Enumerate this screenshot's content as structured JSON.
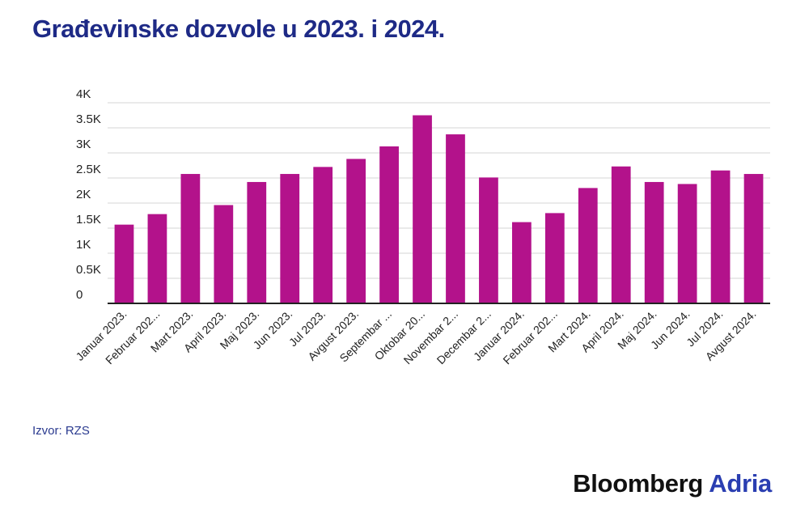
{
  "header": {
    "title": "Građevinske dozvole u 2023. i 2024."
  },
  "footer": {
    "source": "Izvor: RZS",
    "brand_main": "Bloomberg",
    "brand_accent": "Adria"
  },
  "colors": {
    "bar": "#b3128b",
    "title": "#1e2a86",
    "grid": "#d6d6d6",
    "axis": "#222222"
  },
  "chart_data": {
    "type": "bar",
    "title": "Građevinske dozvole u 2023. i 2024.",
    "xlabel": "",
    "ylabel": "",
    "ylim": [
      0,
      4000
    ],
    "yticks": [
      {
        "value": 0,
        "label": "0"
      },
      {
        "value": 500,
        "label": "0.5K"
      },
      {
        "value": 1000,
        "label": "1K"
      },
      {
        "value": 1500,
        "label": "1.5K"
      },
      {
        "value": 2000,
        "label": "2K"
      },
      {
        "value": 2500,
        "label": "2.5K"
      },
      {
        "value": 3000,
        "label": "3K"
      },
      {
        "value": 3500,
        "label": "3.5K"
      },
      {
        "value": 4000,
        "label": "4K"
      }
    ],
    "grid": true,
    "categories": [
      "Januar 2023.",
      "Februar 202...",
      "Mart 2023.",
      "April 2023.",
      "Maj 2023.",
      "Jun 2023.",
      "Jul 2023.",
      "Avgust 2023.",
      "Septembar ...",
      "Oktobar 20...",
      "Novembar 2...",
      "Decembar 2...",
      "Januar 2024.",
      "Februar 202...",
      "Mart 2024.",
      "April 2024.",
      "Maj 2024.",
      "Jun 2024.",
      "Jul 2024.",
      "Avgust 2024."
    ],
    "values": [
      1570,
      1780,
      2580,
      1960,
      2420,
      2580,
      2720,
      2880,
      3130,
      3750,
      3370,
      2510,
      1620,
      1800,
      2300,
      2730,
      2420,
      2380,
      2650,
      2580
    ]
  }
}
